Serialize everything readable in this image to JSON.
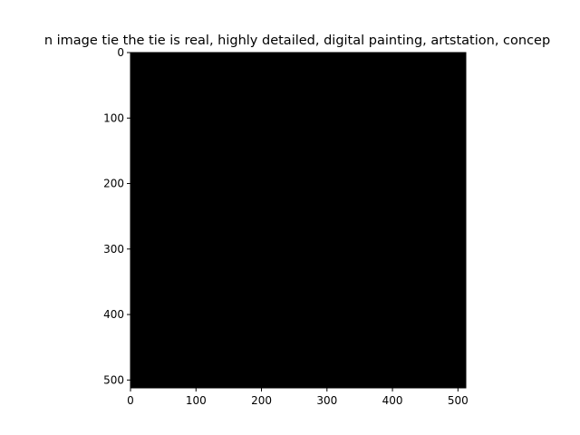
{
  "chart_data": {
    "type": "heatmap",
    "title": "n image tie the tie is real, highly detailed, digital painting, artstation, concep",
    "xlabel": "",
    "ylabel": "",
    "image_fill_color": "#000000",
    "image_value": 0,
    "xlim": [
      0,
      512
    ],
    "ylim": [
      512,
      0
    ],
    "y_inverted": true,
    "grid": false,
    "xticks": [
      0,
      100,
      200,
      300,
      400,
      500
    ],
    "xtick_labels": [
      "0",
      "100",
      "200",
      "300",
      "400",
      "500"
    ],
    "yticks": [
      0,
      100,
      200,
      300,
      400,
      500
    ],
    "ytick_labels": [
      "0",
      "100",
      "200",
      "300",
      "400",
      "500"
    ]
  }
}
